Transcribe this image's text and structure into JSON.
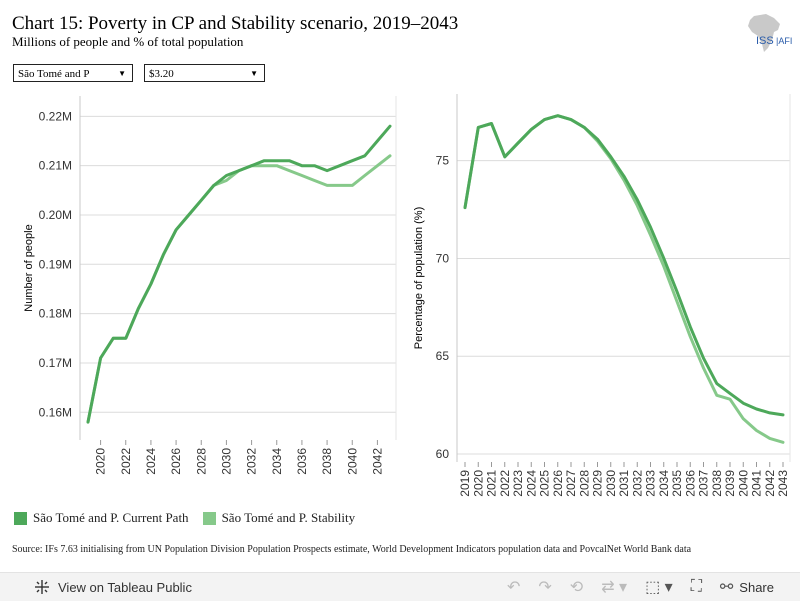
{
  "header": {
    "title": "Chart 15: Poverty in CP and Stability scenario, 2019–2043",
    "subtitle": "Millions of people and % of total population",
    "logo_text": "ISS|AFI"
  },
  "filters": {
    "country": "São Tomé and P",
    "threshold": "$3.20"
  },
  "chart_data": [
    {
      "type": "line",
      "ylabel": "Number of people",
      "x": [
        2019,
        2020,
        2021,
        2022,
        2023,
        2024,
        2025,
        2026,
        2027,
        2028,
        2029,
        2030,
        2031,
        2032,
        2033,
        2034,
        2035,
        2036,
        2037,
        2038,
        2039,
        2040,
        2041,
        2042,
        2043
      ],
      "xticks": [
        "2020",
        "2022",
        "2024",
        "2026",
        "2028",
        "2030",
        "2032",
        "2034",
        "2036",
        "2038",
        "2040",
        "2042"
      ],
      "yticks": [
        "0.16M",
        "0.17M",
        "0.18M",
        "0.19M",
        "0.20M",
        "0.21M",
        "0.22M"
      ],
      "ylim": [
        0.156,
        0.2225
      ],
      "series": [
        {
          "name": "São Tomé and P. Stability",
          "color": "#86c98a",
          "values": [
            0.158,
            0.171,
            0.175,
            0.175,
            0.181,
            0.186,
            0.192,
            0.197,
            0.2,
            0.203,
            0.206,
            0.207,
            0.209,
            0.21,
            0.21,
            0.21,
            0.209,
            0.208,
            0.207,
            0.206,
            0.206,
            0.206,
            0.208,
            0.21,
            0.212
          ]
        },
        {
          "name": "São Tomé and P. Current Path",
          "color": "#4da85a",
          "values": [
            0.158,
            0.171,
            0.175,
            0.175,
            0.181,
            0.186,
            0.192,
            0.197,
            0.2,
            0.203,
            0.206,
            0.208,
            0.209,
            0.21,
            0.211,
            0.211,
            0.211,
            0.21,
            0.21,
            0.209,
            0.21,
            0.211,
            0.212,
            0.215,
            0.218
          ]
        }
      ]
    },
    {
      "type": "line",
      "ylabel": "Percentage of population (%)",
      "x": [
        2019,
        2020,
        2021,
        2022,
        2023,
        2024,
        2025,
        2026,
        2027,
        2028,
        2029,
        2030,
        2031,
        2032,
        2033,
        2034,
        2035,
        2036,
        2037,
        2038,
        2039,
        2040,
        2041,
        2042,
        2043
      ],
      "xticks": [
        "2019",
        "2020",
        "2021",
        "2022",
        "2023",
        "2024",
        "2025",
        "2026",
        "2027",
        "2028",
        "2029",
        "2030",
        "2031",
        "2032",
        "2033",
        "2034",
        "2035",
        "2036",
        "2037",
        "2038",
        "2039",
        "2040",
        "2041",
        "2042",
        "2043"
      ],
      "yticks": [
        "60",
        "65",
        "70",
        "75"
      ],
      "ylim": [
        60,
        78
      ],
      "series": [
        {
          "name": "São Tomé and P. Stability",
          "color": "#86c98a",
          "values": [
            72.6,
            76.7,
            76.9,
            75.2,
            75.9,
            76.6,
            77.1,
            77.3,
            77.1,
            76.7,
            76.0,
            75.1,
            74.0,
            72.7,
            71.2,
            69.6,
            67.8,
            66.0,
            64.4,
            63.0,
            62.8,
            61.8,
            61.2,
            60.8,
            60.6
          ]
        },
        {
          "name": "São Tomé and P. Current Path",
          "color": "#4da85a",
          "values": [
            72.6,
            76.7,
            76.9,
            75.2,
            75.9,
            76.6,
            77.1,
            77.3,
            77.1,
            76.7,
            76.1,
            75.2,
            74.2,
            73.0,
            71.6,
            70.0,
            68.3,
            66.5,
            64.9,
            63.6,
            63.1,
            62.6,
            62.3,
            62.1,
            62.0
          ]
        }
      ]
    }
  ],
  "legend": [
    {
      "label": "São Tomé and P. Current Path",
      "color": "#4da85a"
    },
    {
      "label": "São Tomé and P. Stability",
      "color": "#86c98a"
    }
  ],
  "source": "Source: IFs 7.63 initialising from UN Population Division Population Prospects estimate, World Development Indicators population data and PovcalNet World Bank data",
  "footer": {
    "view_label": "View on Tableau Public",
    "share_label": "Share"
  }
}
